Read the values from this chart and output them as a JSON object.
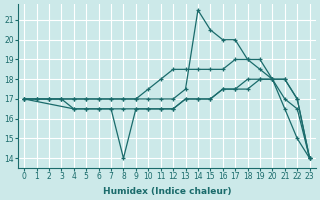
{
  "xlabel": "Humidex (Indice chaleur)",
  "xlim": [
    -0.5,
    23.5
  ],
  "ylim": [
    13.5,
    21.8
  ],
  "yticks": [
    14,
    15,
    16,
    17,
    18,
    19,
    20,
    21
  ],
  "xticks": [
    0,
    1,
    2,
    3,
    4,
    5,
    6,
    7,
    8,
    9,
    10,
    11,
    12,
    13,
    14,
    15,
    16,
    17,
    18,
    19,
    20,
    21,
    22,
    23
  ],
  "bg_color": "#cce9e9",
  "grid_color": "#ffffff",
  "line_color": "#1a6b6b",
  "lines": [
    {
      "x": [
        0,
        1,
        2,
        3,
        4,
        5,
        6,
        7,
        8,
        9,
        10,
        11,
        12,
        13,
        14,
        15,
        16,
        17,
        18,
        19,
        20,
        21,
        22,
        23
      ],
      "y": [
        17,
        17,
        17,
        17,
        17,
        17,
        17,
        17,
        17,
        17,
        17,
        17,
        17,
        17.5,
        21.5,
        20.5,
        20,
        20,
        19,
        19,
        18,
        18,
        17,
        14
      ]
    },
    {
      "x": [
        0,
        1,
        2,
        3,
        4,
        5,
        6,
        7,
        8,
        9,
        10,
        11,
        12,
        13,
        14,
        15,
        16,
        17,
        18,
        19,
        20,
        21,
        22,
        23
      ],
      "y": [
        17,
        17,
        17,
        17,
        17,
        17,
        17,
        17,
        17,
        17,
        17.5,
        18,
        18.5,
        18.5,
        18.5,
        18.5,
        18.5,
        19,
        19,
        18.5,
        18,
        18,
        17,
        14
      ]
    },
    {
      "x": [
        0,
        1,
        2,
        3,
        4,
        5,
        6,
        7,
        8,
        9,
        10,
        11,
        12,
        13,
        14,
        15,
        16,
        17,
        18,
        19,
        20,
        21,
        22,
        23
      ],
      "y": [
        17,
        17,
        17,
        17,
        16.5,
        16.5,
        16.5,
        16.5,
        16.5,
        16.5,
        16.5,
        16.5,
        16.5,
        17,
        17,
        17,
        17.5,
        17.5,
        18,
        18,
        18,
        17,
        16.5,
        14
      ]
    },
    {
      "x": [
        0,
        4,
        5,
        6,
        7,
        8,
        9,
        10,
        11,
        12,
        13,
        14,
        15,
        16,
        17,
        18,
        19,
        20,
        21,
        22,
        23
      ],
      "y": [
        17,
        16.5,
        16.5,
        16.5,
        16.5,
        14,
        16.5,
        16.5,
        16.5,
        16.5,
        17,
        17,
        17,
        17.5,
        17.5,
        17.5,
        18,
        18,
        16.5,
        15,
        14
      ]
    }
  ]
}
